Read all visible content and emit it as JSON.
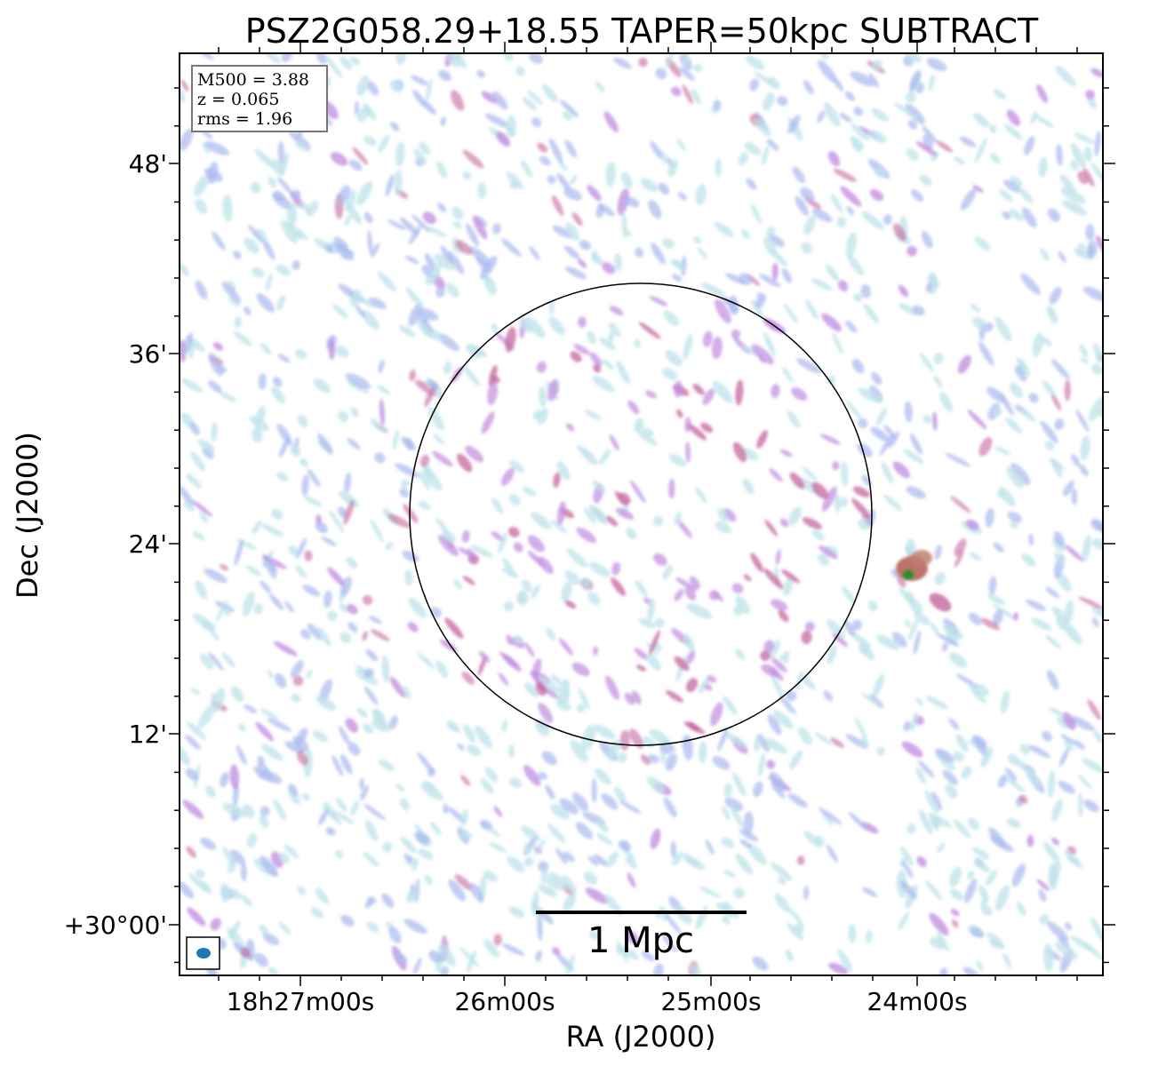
{
  "figure": {
    "title": "PSZ2G058.29+18.55 TAPER=50kpc SUBTRACT",
    "x_axis_label": "RA (J2000)",
    "y_axis_label": "Dec (J2000)",
    "x_tick_labels": [
      "18h27m00s",
      "26m00s",
      "25m00s",
      "24m00s"
    ],
    "y_tick_labels": [
      "48'",
      "36'",
      "24'",
      "12'",
      "+30°00'"
    ],
    "info_box": {
      "mass_line": "M500 = 3.88",
      "redshift_line": "z = 0.065",
      "rms_line": "rms = 1.96"
    },
    "scale_bar_label": "1 Mpc",
    "colors": {
      "frame": "#000000",
      "noise_light": "#bfe3ea",
      "noise_blue": "#a9b9ee",
      "noise_purple": "#c08be0",
      "noise_magenta": "#c4679f",
      "source_red": "#b5645a",
      "source_green": "#2e8b2e",
      "beam_fill": "#1f77b4"
    }
  }
}
